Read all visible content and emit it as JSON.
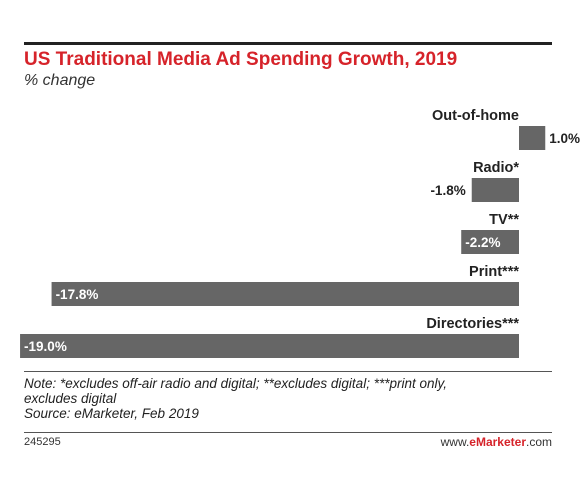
{
  "header": {
    "title": "US Traditional Media Ad Spending Growth, 2019",
    "subtitle": "% change"
  },
  "chart_data": {
    "type": "bar",
    "orientation": "horizontal",
    "categories": [
      "Out-of-home",
      "Radio*",
      "TV**",
      "Print***",
      "Directories***"
    ],
    "values": [
      1.0,
      -1.8,
      -2.2,
      -17.8,
      -19.0
    ],
    "value_labels": [
      "1.0%",
      "-1.8%",
      "-2.2%",
      "-17.8%",
      "-19.0%"
    ],
    "title": "US Traditional Media Ad Spending Growth, 2019",
    "subtitle": "% change",
    "bar_color": "#666666",
    "grid": false,
    "legend": "none"
  },
  "footer": {
    "note_line1": "Note: *excludes off-air radio and digital; **excludes digital; ***print only,",
    "note_line2": "excludes digital",
    "source": "Source: eMarketer, Feb 2019",
    "chart_id": "245295",
    "site_prefix": "www.",
    "site_brand": "eMarketer",
    "site_suffix": ".com"
  },
  "colors": {
    "title": "#d6232a",
    "bar": "#666666",
    "brand": "#d6232a"
  }
}
